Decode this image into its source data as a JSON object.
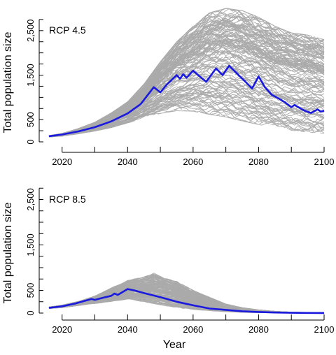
{
  "chart_data": [
    {
      "type": "line",
      "label": "RCP 4.5",
      "xlabel": "",
      "ylabel": "Total population size",
      "xlim": [
        2015,
        2100
      ],
      "ylim": [
        0,
        3000
      ],
      "xticks": [
        2020,
        2040,
        2060,
        2080,
        2100
      ],
      "xtick_labels": [
        "2020",
        "2040",
        "2060",
        "2080",
        "2100"
      ],
      "yticks": [
        0,
        500,
        1000,
        1500,
        2000,
        2500
      ],
      "ytick_labels": [
        "0",
        "500",
        "",
        "1,500",
        "",
        "2,500"
      ],
      "grid": false,
      "colors": {
        "ensemble": "#aaaaaa",
        "mean": "#1a1adf"
      },
      "ensemble": {
        "low": [
          [
            2016,
            110
          ],
          [
            2020,
            130
          ],
          [
            2025,
            180
          ],
          [
            2030,
            240
          ],
          [
            2035,
            320
          ],
          [
            2040,
            420
          ],
          [
            2045,
            540
          ],
          [
            2050,
            640
          ],
          [
            2055,
            700
          ],
          [
            2060,
            690
          ],
          [
            2065,
            620
          ],
          [
            2070,
            560
          ],
          [
            2075,
            470
          ],
          [
            2080,
            390
          ],
          [
            2085,
            320
          ],
          [
            2090,
            260
          ],
          [
            2095,
            220
          ],
          [
            2100,
            190
          ]
        ],
        "high": [
          [
            2016,
            140
          ],
          [
            2020,
            190
          ],
          [
            2025,
            300
          ],
          [
            2030,
            440
          ],
          [
            2035,
            650
          ],
          [
            2040,
            900
          ],
          [
            2045,
            1300
          ],
          [
            2050,
            1800
          ],
          [
            2055,
            2250
          ],
          [
            2060,
            2600
          ],
          [
            2065,
            2900
          ],
          [
            2070,
            3000
          ],
          [
            2075,
            2950
          ],
          [
            2080,
            2800
          ],
          [
            2085,
            2600
          ],
          [
            2090,
            2450
          ],
          [
            2095,
            2400
          ],
          [
            2100,
            2300
          ]
        ]
      },
      "series": [
        {
          "values": [
            [
              2016,
              128
            ],
            [
              2020,
              165
            ],
            [
              2025,
              235
            ],
            [
              2030,
              330
            ],
            [
              2035,
              460
            ],
            [
              2040,
              640
            ],
            [
              2044,
              850
            ],
            [
              2048,
              1230
            ],
            [
              2050,
              1110
            ],
            [
              2052,
              1290
            ],
            [
              2055,
              1500
            ],
            [
              2056,
              1420
            ],
            [
              2057,
              1520
            ],
            [
              2058,
              1440
            ],
            [
              2060,
              1600
            ],
            [
              2062,
              1470
            ],
            [
              2064,
              1350
            ],
            [
              2067,
              1650
            ],
            [
              2069,
              1500
            ],
            [
              2071,
              1710
            ],
            [
              2074,
              1490
            ],
            [
              2076,
              1350
            ],
            [
              2078,
              1200
            ],
            [
              2080,
              1470
            ],
            [
              2082,
              1220
            ],
            [
              2084,
              1060
            ],
            [
              2086,
              980
            ],
            [
              2088,
              890
            ],
            [
              2090,
              780
            ],
            [
              2091,
              830
            ],
            [
              2094,
              700
            ],
            [
              2096,
              650
            ],
            [
              2098,
              730
            ],
            [
              2099,
              680
            ],
            [
              2100,
              700
            ]
          ]
        }
      ]
    },
    {
      "type": "line",
      "label": "RCP 8.5",
      "xlabel": "Year",
      "ylabel": "Total population size",
      "xlim": [
        2015,
        2100
      ],
      "ylim": [
        0,
        3000
      ],
      "xticks": [
        2020,
        2040,
        2060,
        2080,
        2100
      ],
      "xtick_labels": [
        "2020",
        "2040",
        "2060",
        "2080",
        "2100"
      ],
      "yticks": [
        0,
        500,
        1000,
        1500,
        2000,
        2500
      ],
      "ytick_labels": [
        "0",
        "500",
        "",
        "1,500",
        "",
        "2,500"
      ],
      "grid": false,
      "colors": {
        "ensemble": "#aaaaaa",
        "mean": "#1a1adf"
      },
      "ensemble": {
        "low": [
          [
            2016,
            100
          ],
          [
            2020,
            120
          ],
          [
            2025,
            165
          ],
          [
            2030,
            210
          ],
          [
            2035,
            255
          ],
          [
            2040,
            300
          ],
          [
            2045,
            250
          ],
          [
            2050,
            180
          ],
          [
            2055,
            120
          ],
          [
            2060,
            80
          ],
          [
            2065,
            50
          ],
          [
            2070,
            30
          ],
          [
            2075,
            15
          ],
          [
            2080,
            8
          ],
          [
            2090,
            3
          ],
          [
            2100,
            1
          ]
        ],
        "high": [
          [
            2016,
            135
          ],
          [
            2020,
            175
          ],
          [
            2025,
            260
          ],
          [
            2030,
            380
          ],
          [
            2035,
            560
          ],
          [
            2040,
            720
          ],
          [
            2045,
            800
          ],
          [
            2048,
            880
          ],
          [
            2050,
            820
          ],
          [
            2055,
            700
          ],
          [
            2060,
            500
          ],
          [
            2065,
            350
          ],
          [
            2070,
            200
          ],
          [
            2075,
            120
          ],
          [
            2080,
            70
          ],
          [
            2085,
            40
          ],
          [
            2090,
            20
          ],
          [
            2100,
            8
          ]
        ]
      },
      "series": [
        {
          "values": [
            [
              2016,
              115
            ],
            [
              2020,
              150
            ],
            [
              2024,
              210
            ],
            [
              2027,
              270
            ],
            [
              2029,
              310
            ],
            [
              2030,
              290
            ],
            [
              2032,
              330
            ],
            [
              2035,
              380
            ],
            [
              2036,
              430
            ],
            [
              2037,
              400
            ],
            [
              2040,
              530
            ],
            [
              2042,
              500
            ],
            [
              2045,
              440
            ],
            [
              2050,
              350
            ],
            [
              2055,
              250
            ],
            [
              2060,
              170
            ],
            [
              2065,
              100
            ],
            [
              2070,
              70
            ],
            [
              2075,
              40
            ],
            [
              2080,
              25
            ],
            [
              2085,
              12
            ],
            [
              2090,
              6
            ],
            [
              2095,
              3
            ],
            [
              2100,
              2
            ]
          ]
        }
      ]
    }
  ]
}
